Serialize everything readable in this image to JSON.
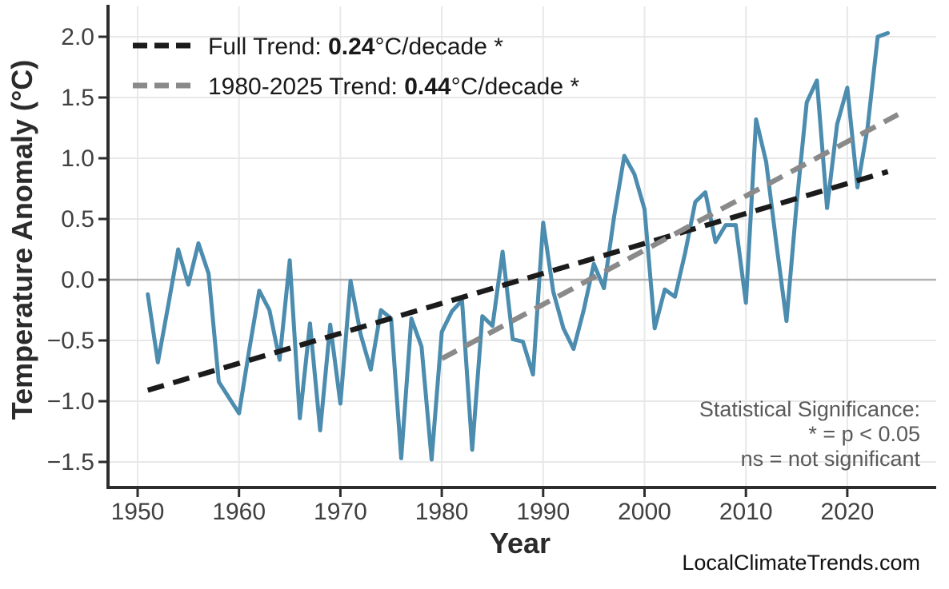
{
  "page": {
    "background": "#ffffff"
  },
  "watermark": "LocalClimateTrends.com",
  "legend": {
    "full": {
      "prefix": "Full Trend: ",
      "value": "0.24",
      "suffix": "°C/decade *",
      "color": "#1b1b1b"
    },
    "recent": {
      "prefix": "1980-2025 Trend: ",
      "value": "0.44",
      "suffix": "°C/decade *",
      "color": "#8a8a8a"
    }
  },
  "annotation": {
    "line1": "Statistical Significance:",
    "line2": "* = p < 0.05",
    "line3": "ns = not significant"
  },
  "axes": {
    "x_label": "Year",
    "y_label": "Temperature Anomaly (°C)",
    "x_ticks": [
      {
        "v": 1950,
        "label": "1950"
      },
      {
        "v": 1960,
        "label": "1960"
      },
      {
        "v": 1970,
        "label": "1970"
      },
      {
        "v": 1980,
        "label": "1980"
      },
      {
        "v": 1990,
        "label": "1990"
      },
      {
        "v": 2000,
        "label": "2000"
      },
      {
        "v": 2010,
        "label": "2010"
      },
      {
        "v": 2020,
        "label": "2020"
      }
    ],
    "y_ticks": [
      {
        "v": 2.0,
        "label": "2.0"
      },
      {
        "v": 1.5,
        "label": "1.5"
      },
      {
        "v": 1.0,
        "label": "1.0"
      },
      {
        "v": 0.5,
        "label": "0.5"
      },
      {
        "v": 0.0,
        "label": "0.0"
      },
      {
        "v": -0.5,
        "label": "−0.5"
      },
      {
        "v": -1.0,
        "label": "−1.0"
      },
      {
        "v": -1.5,
        "label": "−1.5"
      }
    ]
  },
  "chart_data": {
    "type": "line",
    "title": "",
    "xlabel": "Year",
    "ylabel": "Temperature Anomaly (°C)",
    "xlim": [
      1947,
      2029
    ],
    "ylim": [
      -1.7,
      2.25
    ],
    "grid": true,
    "legend_position": "top-left",
    "x": [
      1951,
      1952,
      1953,
      1954,
      1955,
      1956,
      1957,
      1958,
      1959,
      1960,
      1961,
      1962,
      1963,
      1964,
      1965,
      1966,
      1967,
      1968,
      1969,
      1970,
      1971,
      1972,
      1973,
      1974,
      1975,
      1976,
      1977,
      1978,
      1979,
      1980,
      1981,
      1982,
      1983,
      1984,
      1985,
      1986,
      1987,
      1988,
      1989,
      1990,
      1991,
      1992,
      1993,
      1994,
      1995,
      1996,
      1997,
      1998,
      1999,
      2000,
      2001,
      2002,
      2003,
      2004,
      2005,
      2006,
      2007,
      2008,
      2009,
      2010,
      2011,
      2012,
      2013,
      2014,
      2015,
      2016,
      2017,
      2018,
      2019,
      2020,
      2021,
      2022,
      2023,
      2024
    ],
    "series": [
      {
        "name": "annual-temperature-anomaly",
        "color": "#4B8CAF",
        "width": 5,
        "dash": null,
        "values": [
          -0.12,
          -0.68,
          -0.22,
          0.25,
          -0.04,
          0.3,
          0.05,
          -0.84,
          -0.97,
          -1.1,
          -0.58,
          -0.09,
          -0.25,
          -0.66,
          0.16,
          -1.14,
          -0.36,
          -1.24,
          -0.37,
          -1.02,
          -0.01,
          -0.45,
          -0.74,
          -0.25,
          -0.32,
          -1.47,
          -0.32,
          -0.55,
          -1.48,
          -0.43,
          -0.26,
          -0.17,
          -1.4,
          -0.3,
          -0.38,
          0.23,
          -0.49,
          -0.51,
          -0.78,
          0.47,
          -0.1,
          -0.4,
          -0.57,
          -0.25,
          0.13,
          -0.07,
          0.52,
          1.02,
          0.87,
          0.58,
          -0.4,
          -0.08,
          -0.14,
          0.22,
          0.64,
          0.72,
          0.31,
          0.45,
          0.45,
          -0.19,
          1.32,
          0.97,
          0.3,
          -0.34,
          0.62,
          1.46,
          1.64,
          0.59,
          1.28,
          1.58,
          0.76,
          1.25,
          2.0,
          2.03
        ]
      },
      {
        "name": "full-trend-line",
        "legend": "Full Trend: 0.24°C/decade *",
        "color": "#1b1b1b",
        "width": 6.5,
        "dash": "21 12",
        "x": [
          1951,
          2024
        ],
        "values": [
          -0.91,
          0.89
        ]
      },
      {
        "name": "recent-trend-line",
        "legend": "1980-2025 Trend: 0.44°C/decade *",
        "color": "#8a8a8a",
        "width": 6.5,
        "dash": "21 12",
        "x": [
          1980,
          2025
        ],
        "values": [
          -0.65,
          1.36
        ]
      }
    ],
    "trend_stats": {
      "full_trend_c_per_decade": 0.24,
      "recent_trend_c_per_decade": 0.44,
      "significance_note": "* = p < 0.05, ns = not significant"
    }
  }
}
